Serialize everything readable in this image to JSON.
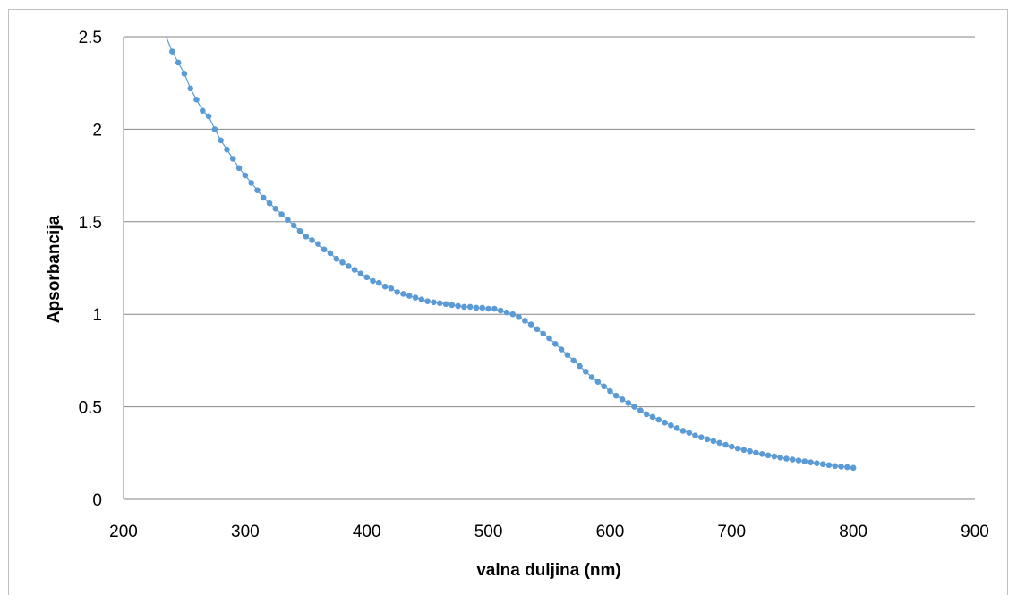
{
  "chart_data": {
    "type": "scatter",
    "title": "",
    "xlabel": "valna duljina (nm)",
    "ylabel": "Apsorbancija",
    "xlim": [
      200,
      900
    ],
    "ylim": [
      0,
      2.5
    ],
    "xticks": [
      "200",
      "300",
      "400",
      "500",
      "600",
      "700",
      "800",
      "900"
    ],
    "yticks": [
      "0",
      "0.5",
      "1",
      "1.5",
      "2",
      "2.5"
    ],
    "grid": "horizontal",
    "legend": "none",
    "marker_color": "#5b9bd5",
    "line_color": "#5b9bd5",
    "series": [
      {
        "markers": true,
        "x": [
          235,
          240,
          245,
          250,
          255,
          260,
          265,
          270,
          275,
          280,
          285,
          290,
          295,
          300,
          305,
          310,
          315,
          320,
          325,
          330,
          335,
          340,
          345,
          350,
          355,
          360,
          365,
          370,
          375,
          380,
          385,
          390,
          395,
          400,
          405,
          410,
          415,
          420,
          425,
          430,
          435,
          440,
          445,
          450,
          455,
          460,
          465,
          470,
          475,
          480,
          485,
          490,
          495,
          500,
          505,
          510,
          515,
          520,
          525,
          530,
          535,
          540,
          545,
          550,
          555,
          560,
          565,
          570,
          575,
          580,
          585,
          590,
          595,
          600,
          605,
          610,
          615,
          620,
          625,
          630,
          635,
          640,
          645,
          650,
          655,
          660,
          665,
          670,
          675,
          680,
          685,
          690,
          695,
          700,
          705,
          710,
          715,
          720,
          725,
          730,
          735,
          740,
          745,
          750,
          755,
          760,
          765,
          770,
          775,
          780,
          785,
          790,
          795,
          800
        ],
        "y": [
          2.5,
          2.42,
          2.36,
          2.3,
          2.22,
          2.16,
          2.1,
          2.07,
          2.0,
          1.94,
          1.89,
          1.84,
          1.79,
          1.75,
          1.71,
          1.67,
          1.63,
          1.6,
          1.57,
          1.54,
          1.51,
          1.48,
          1.45,
          1.42,
          1.4,
          1.38,
          1.35,
          1.33,
          1.3,
          1.28,
          1.26,
          1.24,
          1.22,
          1.2,
          1.18,
          1.17,
          1.15,
          1.14,
          1.12,
          1.11,
          1.1,
          1.09,
          1.08,
          1.07,
          1.065,
          1.06,
          1.055,
          1.05,
          1.045,
          1.04,
          1.04,
          1.035,
          1.035,
          1.03,
          1.03,
          1.02,
          1.01,
          1.0,
          0.985,
          0.965,
          0.945,
          0.92,
          0.895,
          0.87,
          0.84,
          0.81,
          0.78,
          0.75,
          0.72,
          0.69,
          0.66,
          0.635,
          0.61,
          0.585,
          0.56,
          0.54,
          0.52,
          0.5,
          0.48,
          0.46,
          0.445,
          0.43,
          0.415,
          0.4,
          0.385,
          0.37,
          0.36,
          0.345,
          0.335,
          0.325,
          0.315,
          0.305,
          0.295,
          0.285,
          0.275,
          0.267,
          0.26,
          0.252,
          0.245,
          0.238,
          0.232,
          0.226,
          0.22,
          0.215,
          0.21,
          0.205,
          0.2,
          0.195,
          0.19,
          0.185,
          0.18,
          0.177,
          0.174,
          0.17
        ]
      }
    ]
  }
}
